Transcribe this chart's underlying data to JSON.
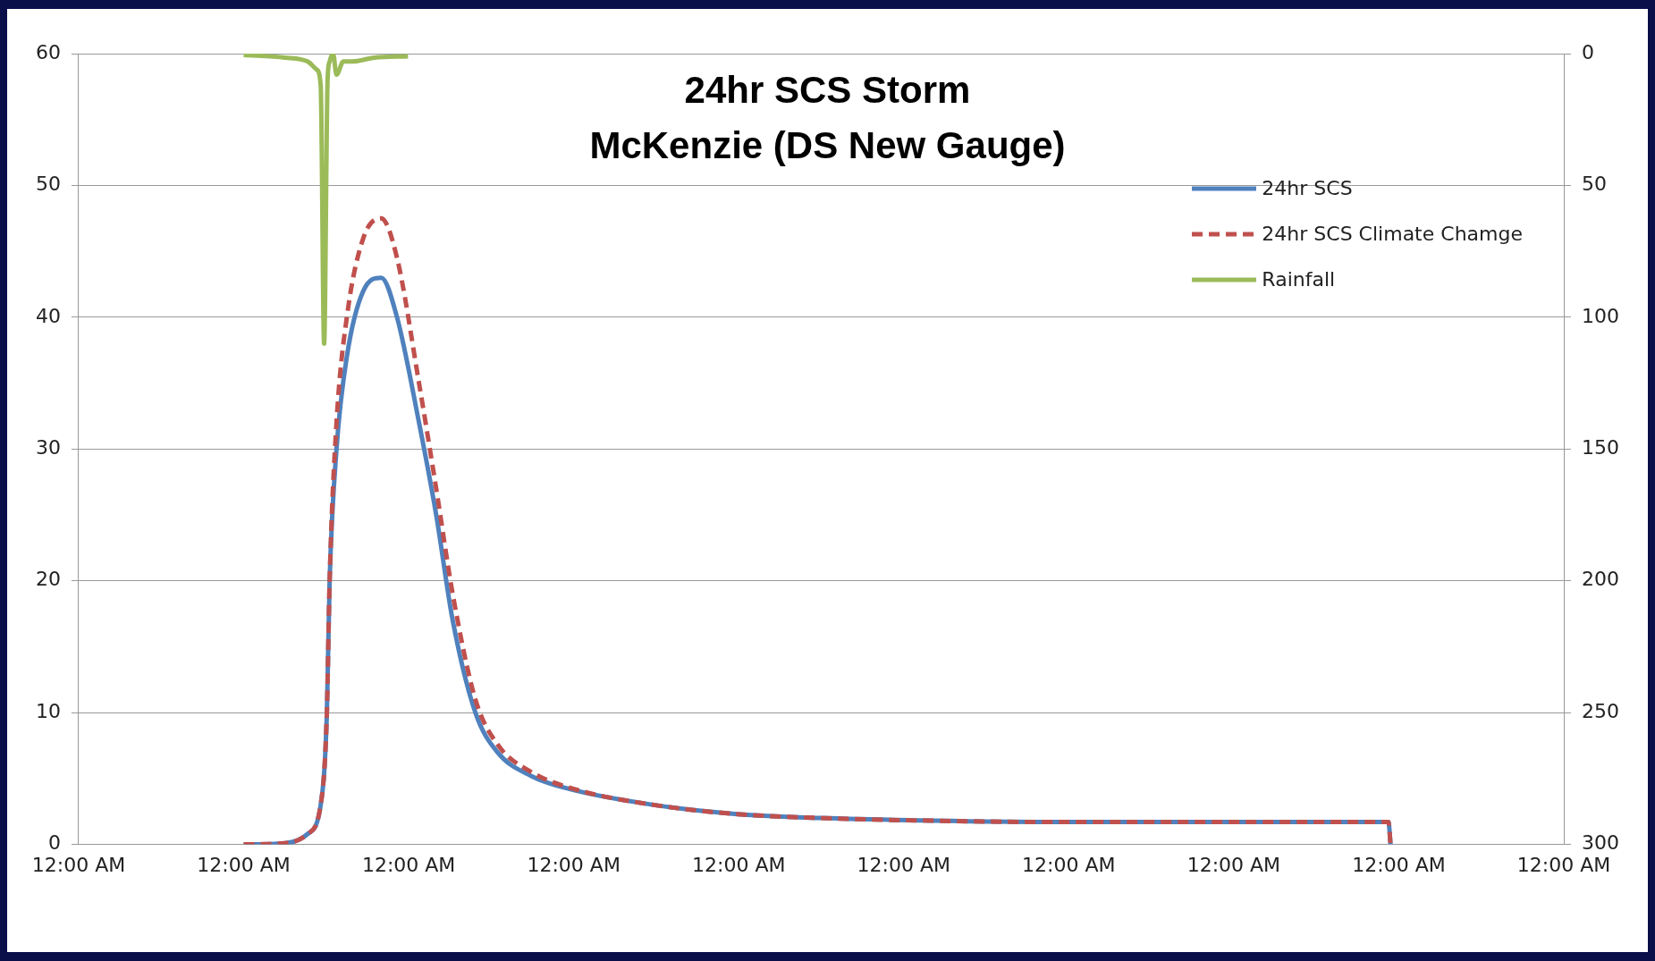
{
  "chart_data": {
    "type": "line",
    "title": "24hr SCS Storm\nMcKenzie (DS New Gauge)",
    "xlim": [
      "2000-01-01T00:00",
      "2000-01-10T00:00"
    ],
    "xticks": [
      {
        "value": "2000-01-01T00:00",
        "label": "12:00 AM"
      },
      {
        "value": "2000-01-02T00:00",
        "label": "12:00 AM"
      },
      {
        "value": "2000-01-03T00:00",
        "label": "12:00 AM"
      },
      {
        "value": "2000-01-04T00:00",
        "label": "12:00 AM"
      },
      {
        "value": "2000-01-05T00:00",
        "label": "12:00 AM"
      },
      {
        "value": "2000-01-06T00:00",
        "label": "12:00 AM"
      },
      {
        "value": "2000-01-07T00:00",
        "label": "12:00 AM"
      },
      {
        "value": "2000-01-08T00:00",
        "label": "12:00 AM"
      },
      {
        "value": "2000-01-09T00:00",
        "label": "12:00 AM"
      },
      {
        "value": "2000-01-10T00:00",
        "label": "12:00 AM"
      }
    ],
    "ylim": [
      0,
      60
    ],
    "yticks": [
      0,
      10,
      20,
      30,
      40,
      50,
      60
    ],
    "y2lim": [
      300,
      0
    ],
    "y2ticks": [
      0,
      50,
      100,
      150,
      200,
      250,
      300
    ],
    "grid": "y",
    "legend": "top right",
    "marker": "none",
    "series": [
      {
        "name": "24hr SCS",
        "color": "#4f81bd",
        "line_style": "solid",
        "x": [
          "2000-01-02T00:00",
          "2000-01-02T06:00",
          "2000-01-02T09:18",
          "2000-01-02T11:12",
          "2000-01-02T12:06",
          "2000-01-02T12:30",
          "2000-01-02T13:30",
          "2000-01-02T15:00",
          "2000-01-02T17:24",
          "2000-01-02T20:00",
          "2000-01-02T22:18",
          "2000-01-03T01:30",
          "2000-01-03T04:00",
          "2000-01-03T06:24",
          "2000-01-03T09:42",
          "2000-01-03T12:54",
          "2000-01-03T17:48",
          "2000-01-03T23:24",
          "2000-01-04T11:36",
          "2000-01-04T23:48",
          "2000-01-05T12:00",
          "2000-01-06T04:18",
          "2000-01-06T20:30",
          "2000-01-08T22:30",
          "2000-01-08T22:48"
        ],
        "values": [
          0,
          0.1,
          0.8,
          3,
          10,
          20,
          30,
          37,
          42,
          43,
          40,
          32,
          25,
          17,
          10,
          7,
          5.2,
          4.2,
          3,
          2.3,
          2,
          1.8,
          1.7,
          1.7,
          0
        ]
      },
      {
        "name": "24hr SCS Climate Chamge",
        "color": "#c0504d",
        "line_style": "dashed",
        "x": [
          "2000-01-02T00:00",
          "2000-01-02T06:00",
          "2000-01-02T09:18",
          "2000-01-02T11:12",
          "2000-01-02T12:06",
          "2000-01-02T12:30",
          "2000-01-02T13:30",
          "2000-01-02T15:00",
          "2000-01-02T17:24",
          "2000-01-02T20:00",
          "2000-01-02T22:18",
          "2000-01-03T01:30",
          "2000-01-03T04:00",
          "2000-01-03T06:24",
          "2000-01-03T09:42",
          "2000-01-03T12:54",
          "2000-01-03T17:48",
          "2000-01-03T23:24",
          "2000-01-04T11:36",
          "2000-01-04T23:48",
          "2000-01-05T12:00",
          "2000-01-06T04:18",
          "2000-01-06T20:30",
          "2000-01-08T22:30",
          "2000-01-08T22:48"
        ],
        "values": [
          0,
          0.1,
          0.8,
          3,
          10,
          20,
          32,
          40,
          46,
          47.5,
          44.5,
          35,
          27,
          19,
          11,
          7.6,
          5.5,
          4.3,
          3,
          2.3,
          2,
          1.8,
          1.7,
          1.7,
          0
        ]
      },
      {
        "name": "Rainfall",
        "color": "#9bbb59",
        "line_style": "solid",
        "axis": "y2",
        "x": [
          "2000-01-02T00:00",
          "2000-01-02T06:00",
          "2000-01-02T09:18",
          "2000-01-02T10:36",
          "2000-01-02T11:12",
          "2000-01-02T11:42",
          "2000-01-02T12:12",
          "2000-01-02T12:30",
          "2000-01-02T13:00",
          "2000-01-02T13:30",
          "2000-01-02T14:30",
          "2000-01-02T15:48",
          "2000-01-02T19:00",
          "2000-01-02T23:54"
        ],
        "values": [
          0.5,
          1.5,
          3,
          6,
          12,
          110,
          10,
          3,
          0,
          8,
          3,
          3,
          1.5,
          1
        ]
      }
    ]
  }
}
